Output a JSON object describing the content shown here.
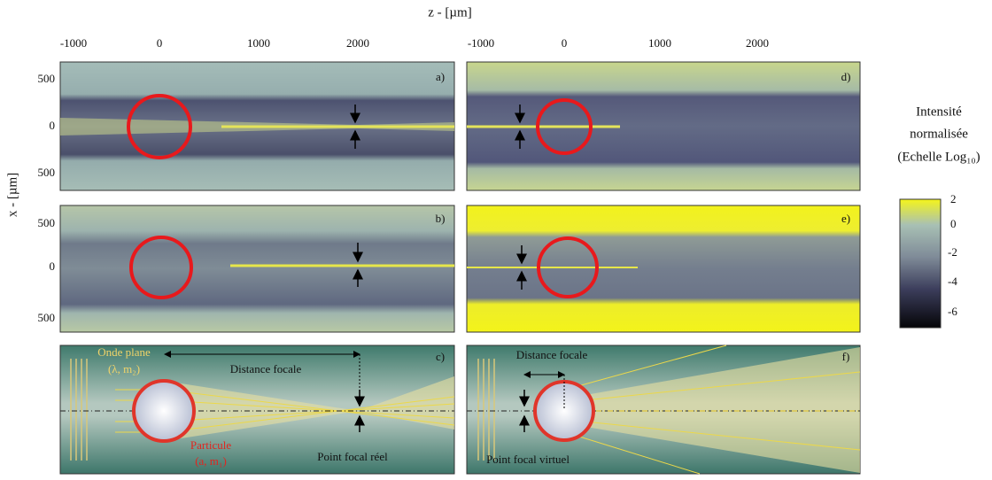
{
  "figure": {
    "x_axis_label": "z - [µm]",
    "y_axis_label": "x - [µm]",
    "top_ticks_left": [
      "-1000",
      "0",
      "1000",
      "2000"
    ],
    "top_ticks_right": [
      "-1000",
      "0",
      "1000",
      "2000"
    ],
    "left_ticks_top": [
      "500",
      "0",
      "500"
    ],
    "left_ticks_middle": [
      "500",
      "0",
      "500"
    ],
    "panel_labels": [
      "a)",
      "b)",
      "c)",
      "d)",
      "e)",
      "f)"
    ],
    "colorbar": {
      "title": [
        "Intensité",
        "normalisée",
        "(Echelle Log₁₀)"
      ],
      "ticks": [
        "2",
        "0",
        "-2",
        "-4",
        "-6"
      ]
    },
    "panel_c": {
      "wave": "Onde plane",
      "wave_params": "(λ, m₂)",
      "distance": "Distance focale",
      "particle": "Particule",
      "particle_params": "(a, m₁)",
      "focal_point": "Point focal réel"
    },
    "panel_f": {
      "distance": "Distance focale",
      "focal_point": "Point focal virtuel"
    }
  }
}
